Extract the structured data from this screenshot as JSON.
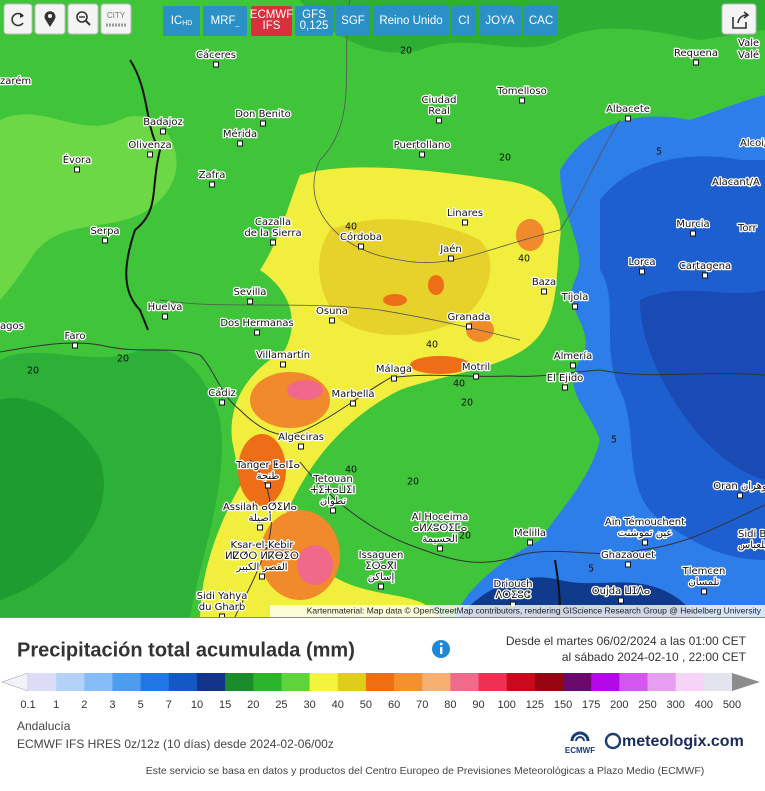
{
  "toolbar": {
    "city": "CITY",
    "buttons": [
      {
        "text": "IC",
        "sub": "HD"
      },
      {
        "text": "MRF",
        "sub": "_"
      },
      {
        "lines": [
          "ECMWF",
          "IFS"
        ]
      },
      {
        "lines": [
          "GFS",
          "0,125"
        ]
      },
      {
        "text": "SGF"
      },
      {
        "text": "Reino Unido"
      },
      {
        "text": "CI"
      },
      {
        "text": "JOYA"
      },
      {
        "text": "CAC"
      }
    ]
  },
  "map": {
    "cities": [
      [
        "Cáceres"
      ],
      [
        "Tomelloso"
      ],
      [
        "Requena"
      ],
      [
        "Vale"
      ],
      [
        "Valé"
      ],
      [
        "zarém"
      ],
      [
        "Ciudad",
        "Real"
      ],
      [
        "Albacete"
      ],
      [
        "Badajoz"
      ],
      [
        "Don Benito"
      ],
      [
        "Mérida"
      ],
      [
        "Puertollano"
      ],
      [
        "Alcoi/A"
      ],
      [
        "Évora"
      ],
      [
        "Olivenza"
      ],
      [
        "Zafra"
      ],
      [
        "Alacant/A"
      ],
      [
        "Linares"
      ],
      [
        "Serpa"
      ],
      [
        "Cazalla",
        "de la Sierra"
      ],
      [
        "Córdoba"
      ],
      [
        "Murcia"
      ],
      [
        "Torr"
      ],
      [
        "Jaén"
      ],
      [
        "Lorca"
      ],
      [
        "Cartagena"
      ],
      [
        "Baza"
      ],
      [
        "Sevilla"
      ],
      [
        "Tíjola"
      ],
      [
        "Huelva"
      ],
      [
        "Osuna"
      ],
      [
        "Granada"
      ],
      [
        "Dos Hermanas"
      ],
      [
        "agos"
      ],
      [
        "Faro"
      ],
      [
        "Villamartín"
      ],
      [
        "Almería"
      ],
      [
        "Málaga"
      ],
      [
        "Motril"
      ],
      [
        "El Ejido"
      ],
      [
        "Marbella"
      ],
      [
        "Cádiz"
      ],
      [
        "Algeciras"
      ],
      [
        "Tanger ⵟⴰⵏⵊⴰ",
        "طنجة"
      ],
      [
        "Tetouan",
        "ⵜⵉⵜⴰⵡⵉⵏ",
        "تطوان"
      ],
      [
        "Oran وهران"
      ],
      [
        "Assilah ⴰⵚⵉⵍⴰ",
        "أصيلة"
      ],
      [
        "Al Hoceima",
        "ⴰⵍⵃⵓⵙⵉⵎⴰ",
        "الحسيمة"
      ],
      [
        "Aïn Témouchent",
        "عين تموشنت"
      ],
      [
        "Sidi Bel A",
        "سيدي بلعباس"
      ],
      [
        "Melilla"
      ],
      [
        "Ksar-el-Kebir",
        "ⵍⵇⵚⵔ ⵍⴽⴱⵉⵔ",
        "القصر الكبير"
      ],
      [
        "Issaguen",
        "ⵉⵙⴰⴳⵏ",
        "إساكن"
      ],
      [
        "Ghazaouet"
      ],
      [
        "Driouch",
        "ⴷⵔⵉⵓⵛ"
      ],
      [
        "Tlemcen",
        "تلمسان"
      ],
      [
        "Oujda ⵡⵊⴷⴰ"
      ],
      [
        "Sidi Yahya",
        "du Gharb"
      ]
    ],
    "contour_labels": [
      "20",
      "5",
      "20",
      "40",
      "40",
      "20",
      "20",
      "40",
      "40",
      "20",
      "5",
      "20",
      "40",
      "20",
      "5"
    ],
    "attribution": "Kartenmaterial: Map data © OpenStreetMap contributors, rendering GIScience Research Group @ Heidelberg University"
  },
  "panel": {
    "title": "Precipitación total acumulada (mm)",
    "date_from": "Desde el martes 06/02/2024 a  las 01:00  CET",
    "date_to": "al sábado 2024-02-10 , 22:00  CET",
    "legend": {
      "labels": [
        0.1,
        1,
        2,
        3,
        5,
        7,
        10,
        15,
        20,
        25,
        30,
        40,
        50,
        60,
        70,
        80,
        90,
        100,
        125,
        150,
        175,
        200,
        250,
        300,
        400,
        500
      ],
      "colors": [
        "#f2f2fa",
        "#dcdcf6",
        "#b4d2f8",
        "#86bcf8",
        "#4c9cf0",
        "#2078e4",
        "#1458c4",
        "#12348a",
        "#1a8c2a",
        "#2ab42a",
        "#5cd43a",
        "#f4f440",
        "#e0cc1c",
        "#ee6e12",
        "#f6902e",
        "#f8b072",
        "#f06a8c",
        "#ee3052",
        "#c80a1c",
        "#960612",
        "#6a0a6c",
        "#b408e6",
        "#d456ee",
        "#e89ef0",
        "#f6d4f8",
        "#e4e4ee",
        "#cccccc",
        "#8c8c8c"
      ]
    },
    "region": "Andalucía",
    "model": "ECMWF IFS HRES 0z/12z (10 días) desde 2024-02-06/00z",
    "ecmwf_logo": "ECMWF",
    "brand": "meteologix.com",
    "footer": "Este servicio se basa en datos y productos del Centro Europeo de Previsiones Meteorológicas a Plazo Medio (ECMWF)"
  }
}
